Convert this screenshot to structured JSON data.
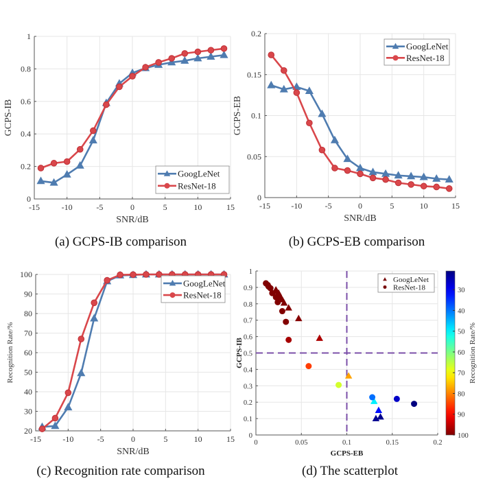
{
  "colors": {
    "googlenet": "#4f7cb0",
    "resnet": "#d9474b",
    "threshold": "#7b4fa8"
  },
  "captions": {
    "a": "(a) GCPS-IB comparison",
    "b": "(b) GCPS-EB comparison",
    "c": "(c) Recognition rate comparison",
    "d": "(d) The scatterplot"
  },
  "chart_data": [
    {
      "id": "a",
      "type": "line",
      "title": "",
      "xlabel": "SNR/dB",
      "ylabel": "GCPS-IB",
      "xlim": [
        -15,
        15
      ],
      "ylim": [
        0,
        1
      ],
      "xticks": [
        -15,
        -10,
        -5,
        0,
        5,
        10,
        15
      ],
      "yticks": [
        0,
        0.2,
        0.4,
        0.6,
        0.8,
        1
      ],
      "ytick_labels": [
        "0",
        "0.2",
        "0.4",
        "0.6",
        "0.8",
        "1"
      ],
      "grid": true,
      "legend_position": "bottom-right",
      "x": [
        -14,
        -12,
        -10,
        -8,
        -6,
        -4,
        -2,
        0,
        2,
        4,
        6,
        8,
        10,
        12,
        14
      ],
      "series": [
        {
          "name": "GoogLeNet",
          "marker": "triangle",
          "values": [
            0.11,
            0.1,
            0.15,
            0.205,
            0.36,
            0.59,
            0.71,
            0.775,
            0.805,
            0.825,
            0.84,
            0.85,
            0.865,
            0.875,
            0.885
          ]
        },
        {
          "name": "ResNet-18",
          "marker": "circle",
          "values": [
            0.19,
            0.22,
            0.23,
            0.305,
            0.42,
            0.58,
            0.69,
            0.755,
            0.81,
            0.84,
            0.865,
            0.895,
            0.905,
            0.915,
            0.925
          ]
        }
      ]
    },
    {
      "id": "b",
      "type": "line",
      "title": "",
      "xlabel": "SNR/dB",
      "ylabel": "GCPS-EB",
      "xlim": [
        -15,
        15
      ],
      "ylim": [
        0,
        0.2
      ],
      "xticks": [
        -15,
        -10,
        -5,
        0,
        5,
        10,
        15
      ],
      "yticks": [
        0,
        0.05,
        0.1,
        0.15,
        0.2
      ],
      "ytick_labels": [
        "0",
        "0.05",
        "0.1",
        "0.15",
        "0.2"
      ],
      "grid": true,
      "legend_position": "top-right",
      "x": [
        -14,
        -12,
        -10,
        -8,
        -6,
        -4,
        -2,
        0,
        2,
        4,
        6,
        8,
        10,
        12,
        14
      ],
      "series": [
        {
          "name": "GoogLeNet",
          "marker": "triangle",
          "values": [
            0.137,
            0.132,
            0.135,
            0.13,
            0.102,
            0.07,
            0.047,
            0.036,
            0.031,
            0.029,
            0.027,
            0.026,
            0.025,
            0.023,
            0.022
          ]
        },
        {
          "name": "ResNet-18",
          "marker": "circle",
          "values": [
            0.174,
            0.155,
            0.128,
            0.091,
            0.058,
            0.036,
            0.033,
            0.029,
            0.024,
            0.022,
            0.018,
            0.016,
            0.014,
            0.013,
            0.011
          ]
        }
      ]
    },
    {
      "id": "c",
      "type": "line",
      "title": "",
      "xlabel": "SNR/dB",
      "ylabel": "Recognition Rate/%",
      "xlim": [
        -15,
        15
      ],
      "ylim": [
        20,
        100
      ],
      "xticks": [
        -15,
        -10,
        -5,
        0,
        5,
        10,
        15
      ],
      "yticks": [
        20,
        30,
        40,
        50,
        60,
        70,
        80,
        90,
        100
      ],
      "ytick_labels": [
        "20",
        "30",
        "40",
        "50",
        "60",
        "70",
        "80",
        "90",
        "100"
      ],
      "grid": true,
      "legend_position": "top-right",
      "x": [
        -14,
        -12,
        -10,
        -8,
        -6,
        -4,
        -2,
        0,
        2,
        4,
        6,
        8,
        10,
        12,
        14
      ],
      "series": [
        {
          "name": "GoogLeNet",
          "marker": "triangle",
          "values": [
            22,
            22.5,
            32,
            49.5,
            77.5,
            96.5,
            99.5,
            99.7,
            100,
            100,
            100,
            100,
            100,
            100,
            100
          ]
        },
        {
          "name": "ResNet-18",
          "marker": "circle",
          "values": [
            21,
            26.5,
            39.5,
            67,
            85.5,
            97,
            99.8,
            99.9,
            100,
            100,
            100,
            100,
            100,
            100,
            100
          ]
        }
      ]
    },
    {
      "id": "d",
      "type": "scatter",
      "title": "",
      "xlabel": "GCPS-EB",
      "ylabel": "GCPS-IB",
      "xlim": [
        0,
        0.2
      ],
      "ylim": [
        0,
        1
      ],
      "xticks": [
        0,
        0.05,
        0.1,
        0.15,
        0.2
      ],
      "xtick_labels": [
        "0",
        "0.05",
        "0.1",
        "0.15",
        "0.2"
      ],
      "yticks": [
        0,
        0.1,
        0.2,
        0.3,
        0.4,
        0.5,
        0.6,
        0.7,
        0.8,
        0.9,
        1
      ],
      "ytick_labels": [
        "0",
        "0.1",
        "0.2",
        "0.3",
        "0.4",
        "0.5",
        "0.6",
        "0.7",
        "0.8",
        "0.9",
        "1"
      ],
      "grid": true,
      "legend_position": "top-right",
      "threshold_lines": {
        "x": 0.1,
        "y": 0.5
      },
      "colorbar": {
        "label": "Recognition Rate/%",
        "range": [
          21,
          100
        ],
        "ticks": [
          30,
          40,
          50,
          60,
          70,
          80,
          90,
          100
        ],
        "colormap": "jet (reversed: low=blue top, high=red bottom)"
      },
      "series": [
        {
          "name": "GoogLeNet",
          "marker": "triangle",
          "x": [
            0.137,
            0.132,
            0.135,
            0.13,
            0.102,
            0.07,
            0.047,
            0.036,
            0.031,
            0.029,
            0.027,
            0.026,
            0.025,
            0.023,
            0.022
          ],
          "y": [
            0.11,
            0.1,
            0.15,
            0.205,
            0.36,
            0.59,
            0.71,
            0.775,
            0.805,
            0.825,
            0.84,
            0.85,
            0.865,
            0.875,
            0.885
          ],
          "color_value": [
            22,
            22.5,
            32,
            49.5,
            77.5,
            96.5,
            99.5,
            99.7,
            100,
            100,
            100,
            100,
            100,
            100,
            100
          ]
        },
        {
          "name": "ResNet-18",
          "marker": "circle",
          "x": [
            0.174,
            0.155,
            0.128,
            0.091,
            0.058,
            0.036,
            0.033,
            0.029,
            0.024,
            0.022,
            0.018,
            0.016,
            0.014,
            0.013,
            0.011
          ],
          "y": [
            0.19,
            0.22,
            0.23,
            0.305,
            0.42,
            0.58,
            0.69,
            0.755,
            0.81,
            0.84,
            0.865,
            0.895,
            0.905,
            0.915,
            0.925
          ],
          "color_value": [
            21,
            26.5,
            39.5,
            67,
            85.5,
            97,
            99.8,
            99.9,
            100,
            100,
            100,
            100,
            100,
            100,
            100
          ]
        }
      ]
    }
  ]
}
